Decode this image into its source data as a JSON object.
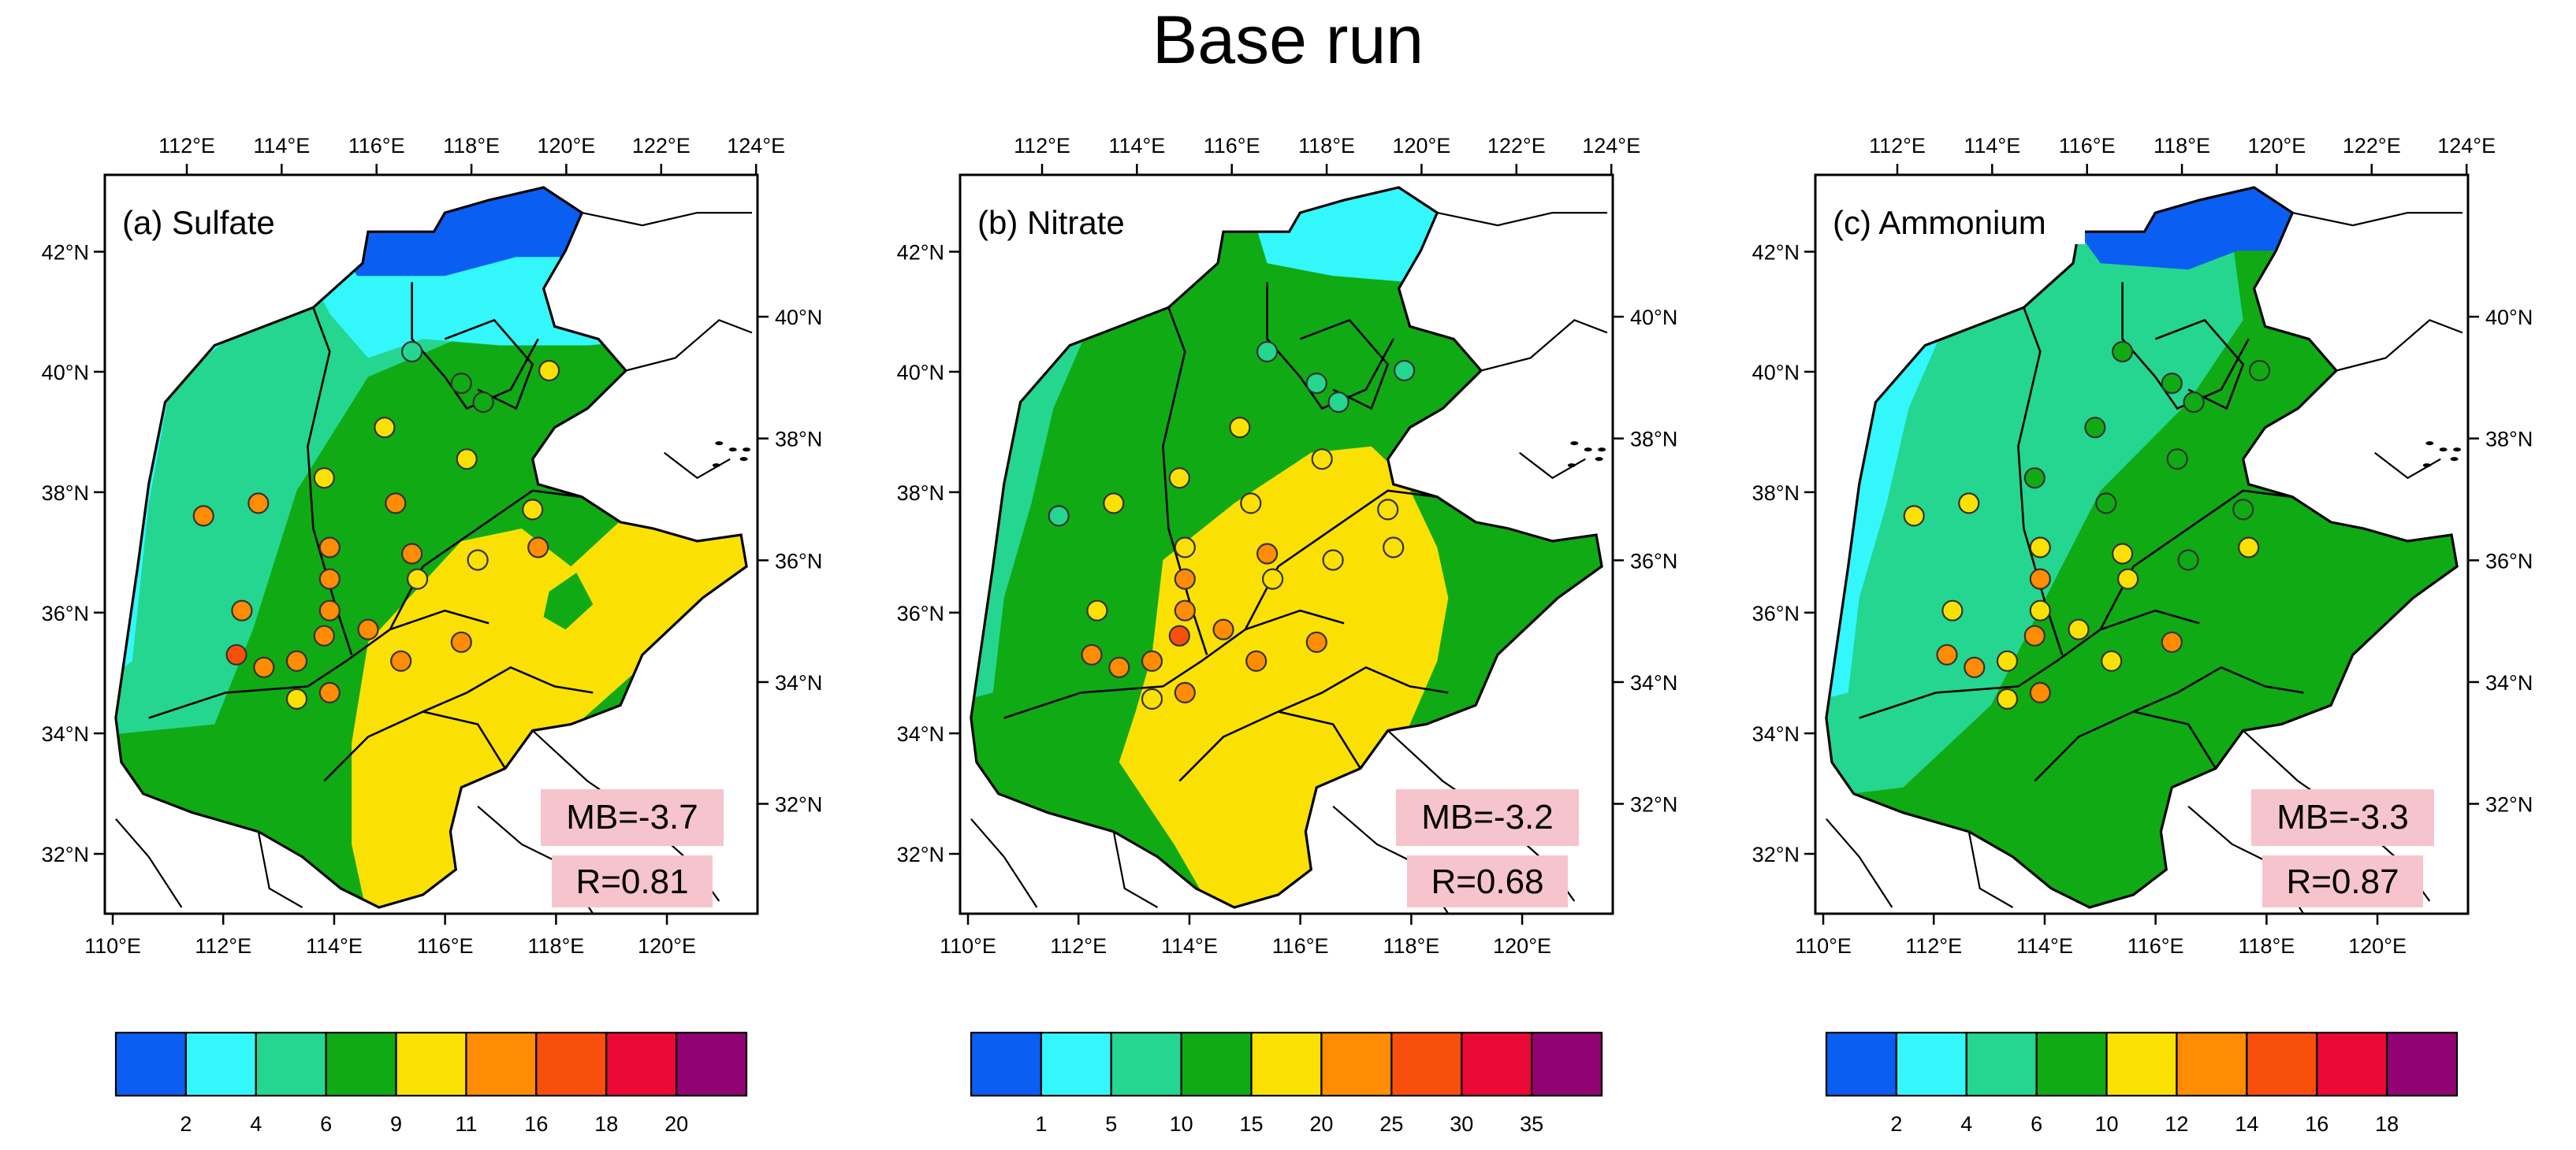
{
  "title": "Base run",
  "colors": {
    "levels": [
      "#0a5ef2",
      "#33f7fa",
      "#25d690",
      "#10aa14",
      "#fbe103",
      "#ff8c02",
      "#f84f0c",
      "#ea0837",
      "#910372"
    ],
    "land_outline": "#000000",
    "stat_box": "#f6c4cd"
  },
  "lon_ticks_top": [
    "112°E",
    "114°E",
    "116°E",
    "118°E",
    "120°E",
    "122°E",
    "124°E"
  ],
  "lon_ticks_bottom": [
    "110°E",
    "112°E",
    "114°E",
    "116°E",
    "118°E",
    "120°E"
  ],
  "lat_ticks_left": [
    "42°N",
    "40°N",
    "38°N",
    "36°N",
    "34°N",
    "32°N"
  ],
  "lat_ticks_right": [
    "40°N",
    "38°N",
    "36°N",
    "34°N",
    "32°N"
  ],
  "panels": [
    {
      "label": "(a) Sulfate",
      "mb": "MB=-3.7",
      "r": "R=0.81",
      "colorbar_labels": [
        "2",
        "4",
        "6",
        "9",
        "11",
        "16",
        "18",
        "20"
      ],
      "map_levels": [
        1,
        2,
        3,
        4
      ],
      "sites": [
        {
          "lon": 115.4,
          "lat": 40.4,
          "level": 3
        },
        {
          "lon": 117.9,
          "lat": 40.1,
          "level": 5
        },
        {
          "lon": 116.3,
          "lat": 39.9,
          "level": 4
        },
        {
          "lon": 116.7,
          "lat": 39.6,
          "level": 4
        },
        {
          "lon": 114.9,
          "lat": 39.2,
          "level": 5
        },
        {
          "lon": 116.4,
          "lat": 38.7,
          "level": 5
        },
        {
          "lon": 113.8,
          "lat": 38.4,
          "level": 5
        },
        {
          "lon": 115.1,
          "lat": 38.0,
          "level": 6
        },
        {
          "lon": 111.6,
          "lat": 37.8,
          "level": 6
        },
        {
          "lon": 112.6,
          "lat": 38.0,
          "level": 6
        },
        {
          "lon": 117.6,
          "lat": 37.9,
          "level": 5
        },
        {
          "lon": 113.9,
          "lat": 37.3,
          "level": 6
        },
        {
          "lon": 115.4,
          "lat": 37.2,
          "level": 6
        },
        {
          "lon": 117.7,
          "lat": 37.3,
          "level": 6
        },
        {
          "lon": 113.9,
          "lat": 36.8,
          "level": 6
        },
        {
          "lon": 115.5,
          "lat": 36.8,
          "level": 5
        },
        {
          "lon": 116.6,
          "lat": 37.1,
          "level": 5
        },
        {
          "lon": 113.9,
          "lat": 36.3,
          "level": 6
        },
        {
          "lon": 112.3,
          "lat": 36.3,
          "level": 6
        },
        {
          "lon": 113.8,
          "lat": 35.9,
          "level": 6
        },
        {
          "lon": 114.6,
          "lat": 36.0,
          "level": 6
        },
        {
          "lon": 116.3,
          "lat": 35.8,
          "level": 6
        },
        {
          "lon": 112.2,
          "lat": 35.6,
          "level": 7
        },
        {
          "lon": 113.3,
          "lat": 35.5,
          "level": 6
        },
        {
          "lon": 112.7,
          "lat": 35.4,
          "level": 6
        },
        {
          "lon": 115.2,
          "lat": 35.5,
          "level": 6
        },
        {
          "lon": 113.3,
          "lat": 34.9,
          "level": 5
        },
        {
          "lon": 113.9,
          "lat": 35.0,
          "level": 6
        }
      ]
    },
    {
      "label": "(b) Nitrate",
      "mb": "MB=-3.2",
      "r": "R=0.68",
      "colorbar_labels": [
        "1",
        "5",
        "10",
        "15",
        "20",
        "25",
        "30",
        "35"
      ],
      "map_levels": [
        1,
        2,
        3,
        4
      ],
      "sites": [
        {
          "lon": 115.4,
          "lat": 40.4,
          "level": 3
        },
        {
          "lon": 117.9,
          "lat": 40.1,
          "level": 3
        },
        {
          "lon": 116.3,
          "lat": 39.9,
          "level": 3
        },
        {
          "lon": 116.7,
          "lat": 39.6,
          "level": 3
        },
        {
          "lon": 114.9,
          "lat": 39.2,
          "level": 5
        },
        {
          "lon": 116.4,
          "lat": 38.7,
          "level": 5
        },
        {
          "lon": 113.8,
          "lat": 38.4,
          "level": 5
        },
        {
          "lon": 115.1,
          "lat": 38.0,
          "level": 5
        },
        {
          "lon": 111.6,
          "lat": 37.8,
          "level": 3
        },
        {
          "lon": 112.6,
          "lat": 38.0,
          "level": 5
        },
        {
          "lon": 117.6,
          "lat": 37.9,
          "level": 5
        },
        {
          "lon": 113.9,
          "lat": 37.3,
          "level": 5
        },
        {
          "lon": 115.4,
          "lat": 37.2,
          "level": 6
        },
        {
          "lon": 117.7,
          "lat": 37.3,
          "level": 5
        },
        {
          "lon": 113.9,
          "lat": 36.8,
          "level": 6
        },
        {
          "lon": 115.5,
          "lat": 36.8,
          "level": 5
        },
        {
          "lon": 116.6,
          "lat": 37.1,
          "level": 5
        },
        {
          "lon": 113.9,
          "lat": 36.3,
          "level": 6
        },
        {
          "lon": 112.3,
          "lat": 36.3,
          "level": 5
        },
        {
          "lon": 113.8,
          "lat": 35.9,
          "level": 7
        },
        {
          "lon": 114.6,
          "lat": 36.0,
          "level": 6
        },
        {
          "lon": 116.3,
          "lat": 35.8,
          "level": 6
        },
        {
          "lon": 112.2,
          "lat": 35.6,
          "level": 6
        },
        {
          "lon": 113.3,
          "lat": 35.5,
          "level": 6
        },
        {
          "lon": 112.7,
          "lat": 35.4,
          "level": 6
        },
        {
          "lon": 115.2,
          "lat": 35.5,
          "level": 6
        },
        {
          "lon": 113.3,
          "lat": 34.9,
          "level": 5
        },
        {
          "lon": 113.9,
          "lat": 35.0,
          "level": 6
        }
      ]
    },
    {
      "label": "(c) Ammonium",
      "mb": "MB=-3.3",
      "r": "R=0.87",
      "colorbar_labels": [
        "2",
        "4",
        "6",
        "10",
        "12",
        "14",
        "16",
        "18"
      ],
      "map_levels": [
        1,
        2,
        3
      ],
      "sites": [
        {
          "lon": 115.4,
          "lat": 40.4,
          "level": 4
        },
        {
          "lon": 117.9,
          "lat": 40.1,
          "level": 4
        },
        {
          "lon": 116.3,
          "lat": 39.9,
          "level": 4
        },
        {
          "lon": 116.7,
          "lat": 39.6,
          "level": 4
        },
        {
          "lon": 114.9,
          "lat": 39.2,
          "level": 4
        },
        {
          "lon": 116.4,
          "lat": 38.7,
          "level": 4
        },
        {
          "lon": 113.8,
          "lat": 38.4,
          "level": 4
        },
        {
          "lon": 115.1,
          "lat": 38.0,
          "level": 4
        },
        {
          "lon": 111.6,
          "lat": 37.8,
          "level": 5
        },
        {
          "lon": 112.6,
          "lat": 38.0,
          "level": 5
        },
        {
          "lon": 117.6,
          "lat": 37.9,
          "level": 4
        },
        {
          "lon": 113.9,
          "lat": 37.3,
          "level": 5
        },
        {
          "lon": 115.4,
          "lat": 37.2,
          "level": 5
        },
        {
          "lon": 117.7,
          "lat": 37.3,
          "level": 5
        },
        {
          "lon": 113.9,
          "lat": 36.8,
          "level": 6
        },
        {
          "lon": 115.5,
          "lat": 36.8,
          "level": 5
        },
        {
          "lon": 116.6,
          "lat": 37.1,
          "level": 4
        },
        {
          "lon": 113.9,
          "lat": 36.3,
          "level": 5
        },
        {
          "lon": 112.3,
          "lat": 36.3,
          "level": 5
        },
        {
          "lon": 113.8,
          "lat": 35.9,
          "level": 6
        },
        {
          "lon": 114.6,
          "lat": 36.0,
          "level": 5
        },
        {
          "lon": 116.3,
          "lat": 35.8,
          "level": 6
        },
        {
          "lon": 112.2,
          "lat": 35.6,
          "level": 6
        },
        {
          "lon": 113.3,
          "lat": 35.5,
          "level": 5
        },
        {
          "lon": 112.7,
          "lat": 35.4,
          "level": 6
        },
        {
          "lon": 115.2,
          "lat": 35.5,
          "level": 5
        },
        {
          "lon": 113.3,
          "lat": 34.9,
          "level": 5
        },
        {
          "lon": 113.9,
          "lat": 35.0,
          "level": 6
        }
      ]
    }
  ]
}
